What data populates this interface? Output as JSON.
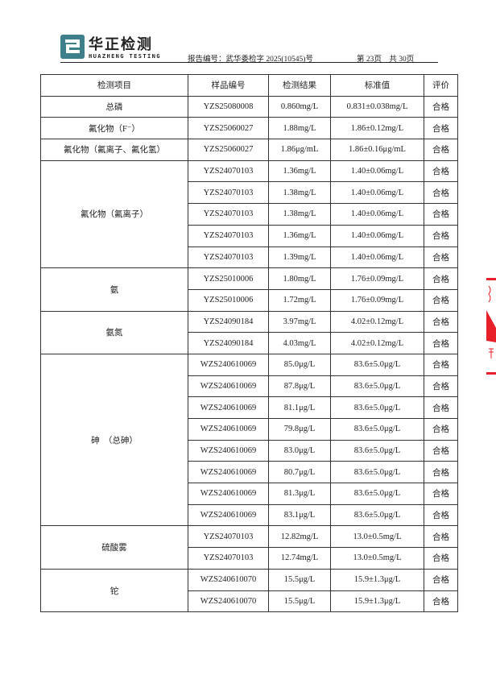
{
  "header": {
    "logo_cn": "华正检测",
    "logo_en": "HUAZHENG TESTING",
    "report_no": "报告编号：武华委检字 2025(10545)号",
    "page": "第 23页　共 30页",
    "brand_color": "#3d7f8a"
  },
  "table": {
    "columns": [
      "检测项目",
      "样品编号",
      "检测结果",
      "标准值",
      "评价"
    ],
    "groups": [
      {
        "item": "总磷",
        "rows": [
          [
            "YZS25080008",
            "0.860mg/L",
            "0.831±0.038mg/L",
            "合格"
          ]
        ]
      },
      {
        "item": "氟化物（F⁻）",
        "rows": [
          [
            "YZS25060027",
            "1.88mg/L",
            "1.86±0.12mg/L",
            "合格"
          ]
        ]
      },
      {
        "item": "氟化物（氟离子、氟化氢）",
        "rows": [
          [
            "YZS25060027",
            "1.86μg/mL",
            "1.86±0.16μg/mL",
            "合格"
          ]
        ]
      },
      {
        "item": "氟化物（氟离子）",
        "rows": [
          [
            "YZS24070103",
            "1.36mg/L",
            "1.40±0.06mg/L",
            "合格"
          ],
          [
            "YZS24070103",
            "1.38mg/L",
            "1.40±0.06mg/L",
            "合格"
          ],
          [
            "YZS24070103",
            "1.38mg/L",
            "1.40±0.06mg/L",
            "合格"
          ],
          [
            "YZS24070103",
            "1.36mg/L",
            "1.40±0.06mg/L",
            "合格"
          ],
          [
            "YZS24070103",
            "1.39mg/L",
            "1.40±0.06mg/L",
            "合格"
          ]
        ]
      },
      {
        "item": "氨",
        "rows": [
          [
            "YZS25010006",
            "1.80mg/L",
            "1.76±0.09mg/L",
            "合格"
          ],
          [
            "YZS25010006",
            "1.72mg/L",
            "1.76±0.09mg/L",
            "合格"
          ]
        ]
      },
      {
        "item": "氨氮",
        "rows": [
          [
            "YZS24090184",
            "3.97mg/L",
            "4.02±0.12mg/L",
            "合格"
          ],
          [
            "YZS24090184",
            "4.03mg/L",
            "4.02±0.12mg/L",
            "合格"
          ]
        ]
      },
      {
        "item": "砷　（总砷）",
        "rows": [
          [
            "WZS240610069",
            "85.0μg/L",
            "83.6±5.0μg/L",
            "合格"
          ],
          [
            "WZS240610069",
            "87.8μg/L",
            "83.6±5.0μg/L",
            "合格"
          ],
          [
            "WZS240610069",
            "81.1μg/L",
            "83.6±5.0μg/L",
            "合格"
          ],
          [
            "WZS240610069",
            "79.8μg/L",
            "83.6±5.0μg/L",
            "合格"
          ],
          [
            "WZS240610069",
            "83.0μg/L",
            "83.6±5.0μg/L",
            "合格"
          ],
          [
            "WZS240610069",
            "80.7μg/L",
            "83.6±5.0μg/L",
            "合格"
          ],
          [
            "WZS240610069",
            "81.3μg/L",
            "83.6±5.0μg/L",
            "合格"
          ],
          [
            "WZS240610069",
            "83.1μg/L",
            "83.6±5.0μg/L",
            "合格"
          ]
        ]
      },
      {
        "item": "硫酸雾",
        "rows": [
          [
            "YZS24070103",
            "12.82mg/L",
            "13.0±0.5mg/L",
            "合格"
          ],
          [
            "YZS24070103",
            "12.74mg/L",
            "13.0±0.5mg/L",
            "合格"
          ]
        ]
      },
      {
        "item": "铊",
        "rows": [
          [
            "WZS240610070",
            "15.5μg/L",
            "15.9±1.3μg/L",
            "合格"
          ],
          [
            "WZS240610070",
            "15.5μg/L",
            "15.9±1.3μg/L",
            "合格"
          ]
        ]
      }
    ]
  },
  "stamp_color": "#e8202a"
}
